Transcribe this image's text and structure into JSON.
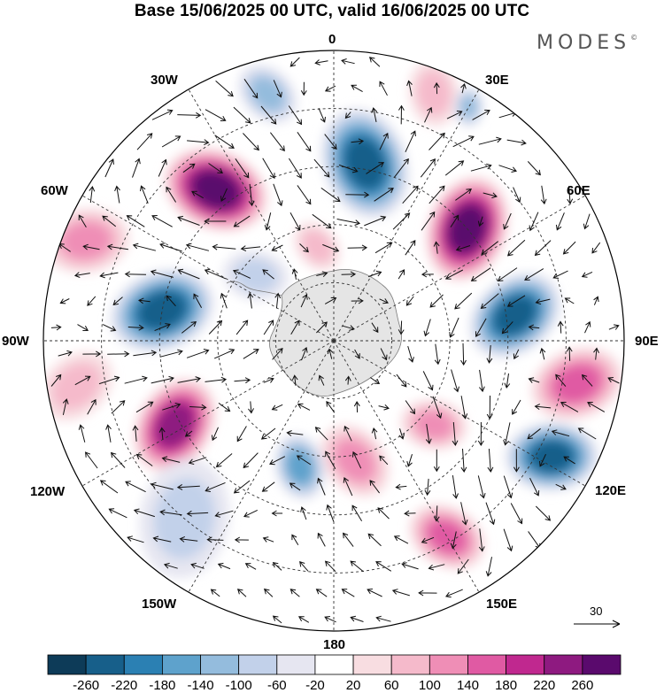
{
  "title": "Base 15/06/2025 00 UTC, valid 16/06/2025 00 UTC",
  "brand": {
    "name": "MODES",
    "mark": "©"
  },
  "longitude_labels": {
    "n": "0",
    "ne": "30E",
    "e_ne": "60E",
    "e": "90E",
    "e_se": "120E",
    "se": "150E",
    "s": "180",
    "sw": "150W",
    "w_sw": "120W",
    "w": "90W",
    "w_nw": "60W",
    "nw": "30W"
  },
  "colorbar": {
    "ticks": [
      "-260",
      "-220",
      "-180",
      "-140",
      "-100",
      "-60",
      "-20",
      "20",
      "60",
      "100",
      "140",
      "180",
      "220",
      "260"
    ],
    "colors": [
      "#0d3b58",
      "#175f8a",
      "#2b80b3",
      "#5ea2cc",
      "#94bcdd",
      "#c2d1ea",
      "#e6e6f1",
      "#ffffff",
      "#f8dde1",
      "#f5bacb",
      "#ef8eb6",
      "#e05aa3",
      "#c0288f",
      "#8e1a80",
      "#5a0a6d"
    ]
  },
  "reference_vector": {
    "value": "30",
    "units": "arrow"
  },
  "anomalies": [
    {
      "lon": 10,
      "r": 0.62,
      "value": -250,
      "size": 0.17
    },
    {
      "lon": -38,
      "r": 0.66,
      "value": 260,
      "size": 0.16
    },
    {
      "lon": 50,
      "r": 0.6,
      "value": 265,
      "size": 0.16
    },
    {
      "lon": -80,
      "r": 0.6,
      "value": -230,
      "size": 0.16
    },
    {
      "lon": 82,
      "r": 0.63,
      "value": -240,
      "size": 0.15
    },
    {
      "lon": -118,
      "r": 0.62,
      "value": 240,
      "size": 0.15
    },
    {
      "lon": 118,
      "r": 0.85,
      "value": -250,
      "size": 0.14
    },
    {
      "lon": 100,
      "r": 0.85,
      "value": 160,
      "size": 0.14
    },
    {
      "lon": 150,
      "r": 0.78,
      "value": 140,
      "size": 0.12
    },
    {
      "lon": 170,
      "r": 0.42,
      "value": 100,
      "size": 0.12
    },
    {
      "lon": -165,
      "r": 0.45,
      "value": -140,
      "size": 0.1
    },
    {
      "lon": -68,
      "r": 0.92,
      "value": 100,
      "size": 0.13
    },
    {
      "lon": 22,
      "r": 0.92,
      "value": 60,
      "size": 0.1
    },
    {
      "lon": -15,
      "r": 0.88,
      "value": -120,
      "size": 0.1
    },
    {
      "lon": -140,
      "r": 0.8,
      "value": -60,
      "size": 0.18
    },
    {
      "lon": 130,
      "r": 0.45,
      "value": 100,
      "size": 0.1
    },
    {
      "lon": -50,
      "r": 0.35,
      "value": -60,
      "size": 0.1
    },
    {
      "lon": 30,
      "r": 0.93,
      "value": -100,
      "size": 0.06
    },
    {
      "lon": -100,
      "r": 0.9,
      "value": 60,
      "size": 0.12
    },
    {
      "lon": -10,
      "r": 0.33,
      "value": 60,
      "size": 0.08
    }
  ]
}
